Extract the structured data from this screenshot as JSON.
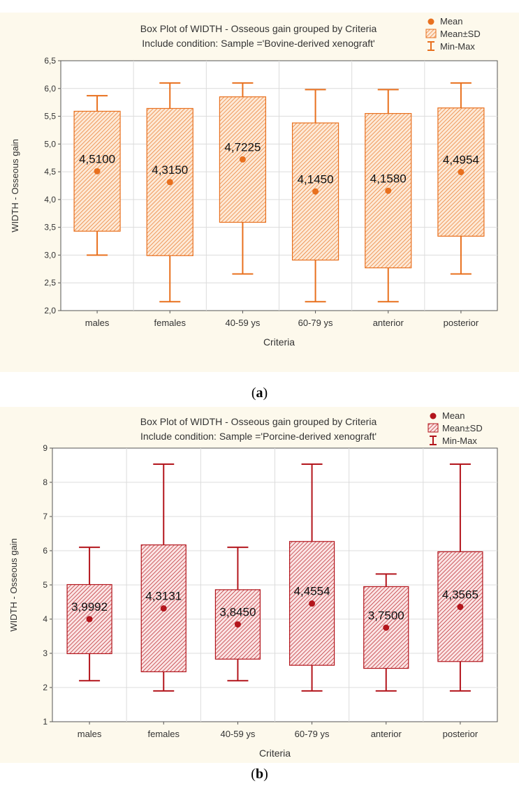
{
  "chart_data": [
    {
      "type": "boxplot",
      "title": "Box Plot of WIDTH - Osseous gain grouped by  Criteria",
      "subtitle": "Include condition: Sample ='Bovine-derived xenograft'",
      "xlabel": "Criteria",
      "ylabel": "WIDTH - Osseous gain",
      "ylim": [
        2.0,
        6.5
      ],
      "yticks": [
        2.0,
        2.5,
        3.0,
        3.5,
        4.0,
        4.5,
        5.0,
        5.5,
        6.0,
        6.5
      ],
      "ytick_labels": [
        "2,0",
        "2,5",
        "3,0",
        "3,5",
        "4,0",
        "4,5",
        "5,0",
        "5,5",
        "6,0",
        "6,5"
      ],
      "grid": true,
      "legend_position": "top-right",
      "legend": [
        "Mean",
        "Mean±SD",
        "Min-Max"
      ],
      "color": "#e8701e",
      "categories": [
        "males",
        "females",
        "40-59 ys",
        "60-79 ys",
        "anterior",
        "posterior"
      ],
      "mean": [
        4.51,
        4.315,
        4.7225,
        4.145,
        4.158,
        4.4954
      ],
      "mean_labels": [
        "4,5100",
        "4,3150",
        "4,7225",
        "4,1450",
        "4,1580",
        "4,4954"
      ],
      "sd_low": [
        3.43,
        2.99,
        3.59,
        2.91,
        2.77,
        3.34
      ],
      "sd_high": [
        5.59,
        5.64,
        5.85,
        5.38,
        5.55,
        5.65
      ],
      "min": [
        3.0,
        2.16,
        2.66,
        2.16,
        2.16,
        2.66
      ],
      "max": [
        5.87,
        6.1,
        6.1,
        5.98,
        5.98,
        6.1
      ]
    },
    {
      "type": "boxplot",
      "title": "Box Plot of WIDTH - Osseous gain grouped by  Criteria",
      "subtitle": "Include condition: Sample ='Porcine-derived xenograft'",
      "xlabel": "Criteria",
      "ylabel": "WIDTH - Osseous gain",
      "ylim": [
        1,
        9
      ],
      "yticks": [
        1,
        2,
        3,
        4,
        5,
        6,
        7,
        8,
        9
      ],
      "ytick_labels": [
        "1",
        "2",
        "3",
        "4",
        "5",
        "6",
        "7",
        "8",
        "9"
      ],
      "grid": true,
      "legend_position": "top-right",
      "legend": [
        "Mean",
        "Mean±SD",
        "Min-Max"
      ],
      "color": "#b3151c",
      "categories": [
        "males",
        "females",
        "40-59 ys",
        "60-79 ys",
        "anterior",
        "posterior"
      ],
      "mean": [
        3.9992,
        4.3131,
        3.845,
        4.4554,
        3.75,
        4.3565
      ],
      "mean_labels": [
        "3,9992",
        "4,3131",
        "3,8450",
        "4,4554",
        "3,7500",
        "4,3565"
      ],
      "sd_low": [
        2.99,
        2.46,
        2.83,
        2.65,
        2.56,
        2.76
      ],
      "sd_high": [
        5.01,
        6.17,
        4.86,
        6.27,
        4.95,
        5.97
      ],
      "min": [
        2.2,
        1.9,
        2.2,
        1.9,
        1.9,
        1.9
      ],
      "max": [
        6.1,
        8.53,
        6.1,
        8.53,
        5.32,
        8.53
      ]
    }
  ],
  "captions": [
    {
      "open": "(",
      "letter": "a",
      "close": ")"
    },
    {
      "open": "(",
      "letter": "b",
      "close": ")"
    }
  ]
}
